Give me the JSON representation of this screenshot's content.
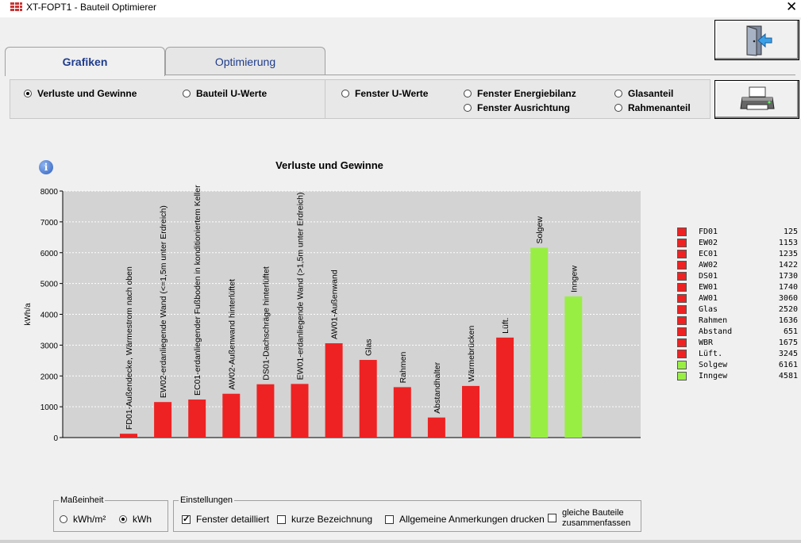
{
  "window": {
    "title": "XT-FOPT1 - Bauteil Optimierer",
    "close": "✕"
  },
  "tabs": [
    {
      "label": "Grafiken",
      "active": true
    },
    {
      "label": "Optimierung",
      "active": false
    }
  ],
  "views": [
    {
      "label": "Verluste und Gewinne",
      "selected": true
    },
    {
      "label": "Bauteil U-Werte",
      "selected": false
    },
    {
      "label": "Fenster U-Werte",
      "selected": false
    },
    {
      "label": "Fenster Energiebilanz",
      "selected": false
    },
    {
      "label": "Fenster Ausrichtung",
      "selected": false
    },
    {
      "label": "Glasanteil",
      "selected": false
    },
    {
      "label": "Rahmenanteil",
      "selected": false
    }
  ],
  "info_icon": "info-icon",
  "chart_data": {
    "type": "bar",
    "title": "Verluste und Gewinne",
    "ylabel": "kWh/a",
    "ylim": [
      0,
      8000
    ],
    "yticks": [
      0,
      1000,
      2000,
      3000,
      4000,
      5000,
      6000,
      7000,
      8000
    ],
    "grid": true,
    "legend": "right",
    "categories": [
      "FD01-Außendecke, Wärmestrom nach oben",
      "EW02-erdanliegende Wand (<=1,5m unter Erdreich)",
      "EC01-erdanliegender Fußboden in konditioniertem Keller",
      "AW02-Außenwand hinterlüftet",
      "DS01-Dachschräge hinterlüftet",
      "EW01-erdanliegende Wand (>1,5m unter Erdreich)",
      "AW01-Außenwand",
      "Glas",
      "Rahmen",
      "Abstandhalter",
      "Wärmebrücken",
      "Lüft.",
      "Solgew",
      "Inngew"
    ],
    "values": [
      125,
      1153,
      1235,
      1422,
      1730,
      1740,
      3060,
      2520,
      1636,
      651,
      1675,
      3245,
      6161,
      4581
    ],
    "colors": [
      "#ee2222",
      "#ee2222",
      "#ee2222",
      "#ee2222",
      "#ee2222",
      "#ee2222",
      "#ee2222",
      "#ee2222",
      "#ee2222",
      "#ee2222",
      "#ee2222",
      "#ee2222",
      "#99ee44",
      "#99ee44"
    ],
    "legend_entries": [
      {
        "name": "FD01",
        "value": "125"
      },
      {
        "name": "EW02",
        "value": "1153"
      },
      {
        "name": "EC01",
        "value": "1235"
      },
      {
        "name": "AW02",
        "value": "1422"
      },
      {
        "name": "DS01",
        "value": "1730"
      },
      {
        "name": "EW01",
        "value": "1740"
      },
      {
        "name": "AW01",
        "value": "3060"
      },
      {
        "name": "Glas",
        "value": "2520"
      },
      {
        "name": "Rahmen",
        "value": "1636"
      },
      {
        "name": "Abstand",
        "value": "651"
      },
      {
        "name": "WBR",
        "value": "1675"
      },
      {
        "name": "Lüft.",
        "value": "3245"
      },
      {
        "name": "Solgew",
        "value": "6161"
      },
      {
        "name": "Inngew",
        "value": "4581"
      }
    ]
  },
  "units": {
    "title": "Maßeinheit",
    "options": [
      {
        "label": "kWh/m²",
        "selected": false
      },
      {
        "label": "kWh",
        "selected": true
      }
    ]
  },
  "settings": {
    "title": "Einstellungen",
    "options": [
      {
        "label": "Fenster detailliert",
        "checked": true
      },
      {
        "label": "kurze Bezeichnung",
        "checked": false
      },
      {
        "label": "Allgemeine Anmerkungen drucken",
        "checked": false
      },
      {
        "label": "gleiche Bauteile",
        "label2": "zusammenfassen",
        "checked": false
      }
    ]
  }
}
